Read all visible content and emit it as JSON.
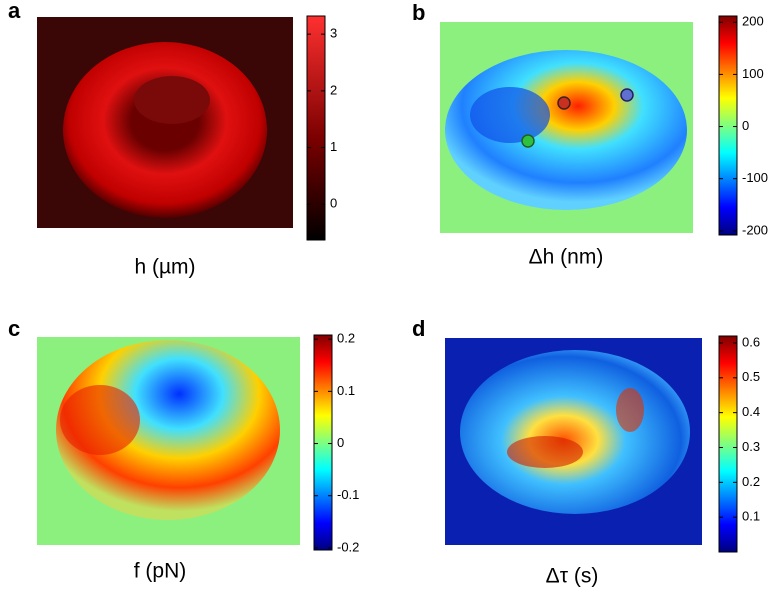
{
  "panels": [
    {
      "label": "a",
      "caption": "h (µm)",
      "colorbar": {
        "lim": [
          -0.63,
          3.32
        ],
        "ticks": [
          0,
          1,
          2,
          3
        ]
      }
    },
    {
      "label": "b",
      "caption": "Δh (nm)",
      "colorbar": {
        "lim": [
          -208,
          212
        ],
        "ticks": [
          -200,
          -100,
          0,
          100,
          200
        ]
      }
    },
    {
      "label": "c",
      "caption": "f (pN)",
      "colorbar": {
        "lim": [
          -0.204,
          0.208
        ],
        "ticks": [
          -0.2,
          -0.1,
          0,
          0.1,
          0.2
        ]
      }
    },
    {
      "label": "d",
      "caption": "Δτ (s)",
      "colorbar": {
        "lim": [
          0,
          0.62
        ],
        "ticks": [
          0.1,
          0.2,
          0.3,
          0.4,
          0.5,
          0.6
        ]
      }
    }
  ]
}
